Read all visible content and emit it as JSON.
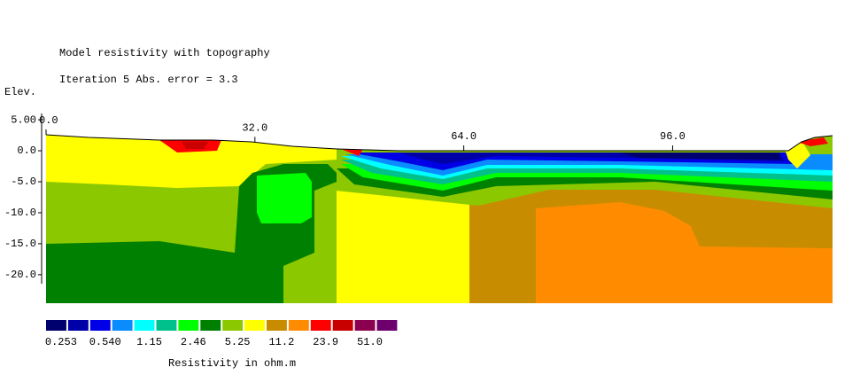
{
  "chart_data": {
    "type": "contour",
    "title": "Model resistivity with topography",
    "subtitle": "Iteration 5 Abs. error = 3.3",
    "ylabel": "Elev.",
    "xlim": [
      0,
      120.5
    ],
    "xticks": [
      {
        "value": 0,
        "label": "0.0"
      },
      {
        "value": 32,
        "label": "32.0"
      },
      {
        "value": 64,
        "label": "64.0"
      },
      {
        "value": 96,
        "label": "96.0"
      }
    ],
    "ylim": [
      -24.6,
      5.3
    ],
    "yticks": [
      {
        "value": 5,
        "label": "5.00"
      },
      {
        "value": 0,
        "label": "0.0"
      },
      {
        "value": -5,
        "label": "-5.0"
      },
      {
        "value": -10,
        "label": "-10.0"
      },
      {
        "value": -15,
        "label": "-15.0"
      },
      {
        "value": -20,
        "label": "-20.0"
      }
    ],
    "colorbar": {
      "colors": [
        "#00006e",
        "#0000a8",
        "#0000e6",
        "#0a8cff",
        "#00ffff",
        "#00c08c",
        "#00ff00",
        "#008000",
        "#8cc800",
        "#ffff00",
        "#c88c00",
        "#ff8c00",
        "#ff0000",
        "#c80000",
        "#8c0050",
        "#6e006e"
      ],
      "labels": [
        {
          "value": 0.253,
          "label": "0.253"
        },
        {
          "value": 0.54,
          "label": "0.540"
        },
        1.15,
        2.46,
        5.25,
        11.2,
        23.9,
        {
          "value": 51,
          "label": "51.0"
        }
      ],
      "label": "Resistivity in ohm.m"
    }
  }
}
